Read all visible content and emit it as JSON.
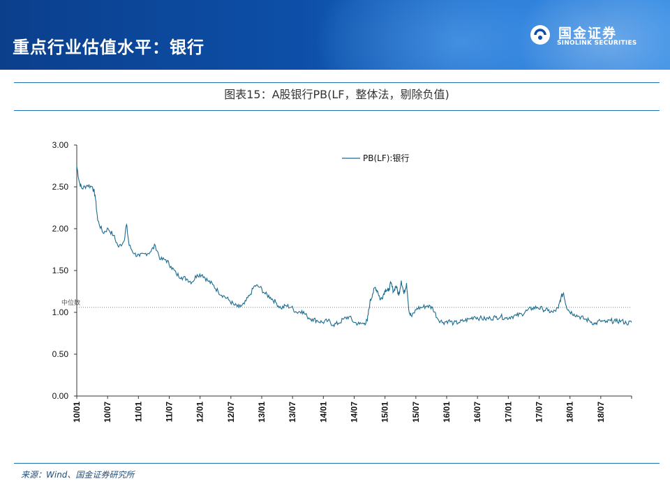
{
  "header": {
    "title": "重点行业估值水平：银行",
    "logo_cn": "国金证券",
    "logo_en": "SINOLINK SECURITIES",
    "colors": {
      "band": "#0d4fa8",
      "line": "#1f6fb5",
      "series": "#1a6b8f"
    }
  },
  "chart_title": "图表15：A股银行PB(LF，整体法，剔除负值)",
  "source": "来源：Wind、国金证券研究所",
  "chart_data": {
    "type": "line",
    "title": "图表15：A股银行PB(LF，整体法，剔除负值)",
    "xlabel": "",
    "ylabel": "",
    "ylim": [
      0,
      3
    ],
    "yticks": [
      "0.00",
      "0.50",
      "1.00",
      "1.50",
      "2.00",
      "2.50",
      "3.00"
    ],
    "xticks": [
      "10/01",
      "10/07",
      "11/01",
      "11/07",
      "12/01",
      "12/07",
      "13/01",
      "13/07",
      "14/01",
      "14/07",
      "15/01",
      "15/07",
      "16/01",
      "16/07",
      "17/01",
      "17/07",
      "18/01",
      "18/07"
    ],
    "x_range_months": [
      0,
      106
    ],
    "legend": {
      "placement": "top-center",
      "label": "PB(LF):银行"
    },
    "median": {
      "label": "中位数",
      "value": 1.06
    },
    "series": [
      {
        "name": "PB(LF):银行",
        "points": [
          [
            0,
            2.75
          ],
          [
            0.5,
            2.55
          ],
          [
            1,
            2.48
          ],
          [
            2,
            2.52
          ],
          [
            3,
            2.5
          ],
          [
            3.5,
            2.4
          ],
          [
            4,
            2.1
          ],
          [
            5,
            1.95
          ],
          [
            6,
            2.0
          ],
          [
            7,
            1.92
          ],
          [
            8,
            1.78
          ],
          [
            9,
            1.85
          ],
          [
            9.5,
            2.05
          ],
          [
            10,
            1.8
          ],
          [
            11,
            1.7
          ],
          [
            12,
            1.67
          ],
          [
            13,
            1.7
          ],
          [
            14,
            1.72
          ],
          [
            15,
            1.8
          ],
          [
            16,
            1.63
          ],
          [
            17,
            1.63
          ],
          [
            18,
            1.55
          ],
          [
            19,
            1.46
          ],
          [
            20,
            1.42
          ],
          [
            21,
            1.4
          ],
          [
            22,
            1.36
          ],
          [
            23,
            1.45
          ],
          [
            24,
            1.45
          ],
          [
            25,
            1.38
          ],
          [
            26,
            1.33
          ],
          [
            27,
            1.25
          ],
          [
            28,
            1.2
          ],
          [
            29,
            1.15
          ],
          [
            30,
            1.09
          ],
          [
            31,
            1.06
          ],
          [
            32,
            1.1
          ],
          [
            33,
            1.2
          ],
          [
            34,
            1.32
          ],
          [
            35,
            1.3
          ],
          [
            36,
            1.22
          ],
          [
            37,
            1.18
          ],
          [
            38,
            1.12
          ],
          [
            39,
            1.05
          ],
          [
            40,
            1.08
          ],
          [
            41,
            1.06
          ],
          [
            42,
            1.0
          ],
          [
            43,
            1.02
          ],
          [
            44,
            0.95
          ],
          [
            45,
            0.92
          ],
          [
            46,
            0.9
          ],
          [
            47,
            0.88
          ],
          [
            48,
            0.9
          ],
          [
            49,
            0.85
          ],
          [
            50,
            0.87
          ],
          [
            51,
            0.92
          ],
          [
            52,
            0.95
          ],
          [
            53,
            0.88
          ],
          [
            54,
            0.86
          ],
          [
            55,
            0.87
          ],
          [
            55.5,
            0.9
          ],
          [
            56,
            1.12
          ],
          [
            56.5,
            1.22
          ],
          [
            57,
            1.3
          ],
          [
            57.5,
            1.25
          ],
          [
            58,
            1.15
          ],
          [
            58.5,
            1.2
          ],
          [
            59,
            1.28
          ],
          [
            59.5,
            1.25
          ],
          [
            60,
            1.35
          ],
          [
            60.5,
            1.25
          ],
          [
            61,
            1.32
          ],
          [
            61.5,
            1.2
          ],
          [
            62,
            1.38
          ],
          [
            62.5,
            1.22
          ],
          [
            63,
            1.35
          ],
          [
            63.5,
            1.0
          ],
          [
            64,
            0.95
          ],
          [
            65,
            1.05
          ],
          [
            66,
            1.06
          ],
          [
            67,
            1.08
          ],
          [
            68,
            1.05
          ],
          [
            69,
            0.92
          ],
          [
            70,
            0.88
          ],
          [
            71,
            0.9
          ],
          [
            72,
            0.87
          ],
          [
            73,
            0.88
          ],
          [
            74,
            0.9
          ],
          [
            75,
            0.92
          ],
          [
            76,
            0.95
          ],
          [
            77,
            0.93
          ],
          [
            78,
            0.92
          ],
          [
            79,
            0.93
          ],
          [
            80,
            0.94
          ],
          [
            81,
            0.95
          ],
          [
            82,
            0.93
          ],
          [
            83,
            0.95
          ],
          [
            84,
            0.96
          ],
          [
            85,
            0.98
          ],
          [
            86,
            1.02
          ],
          [
            87,
            1.05
          ],
          [
            88,
            1.06
          ],
          [
            89,
            1.04
          ],
          [
            90,
            1.02
          ],
          [
            91,
            1.0
          ],
          [
            92,
            1.05
          ],
          [
            92.5,
            1.18
          ],
          [
            93,
            1.23
          ],
          [
            93.5,
            1.08
          ],
          [
            94,
            1.02
          ],
          [
            95,
            0.98
          ],
          [
            96,
            0.95
          ],
          [
            97,
            0.92
          ],
          [
            98,
            0.9
          ],
          [
            99,
            0.86
          ],
          [
            100,
            0.9
          ],
          [
            101,
            0.88
          ],
          [
            102,
            0.9
          ],
          [
            103,
            0.89
          ],
          [
            104,
            0.9
          ],
          [
            105,
            0.87
          ],
          [
            106,
            0.88
          ]
        ]
      }
    ]
  }
}
